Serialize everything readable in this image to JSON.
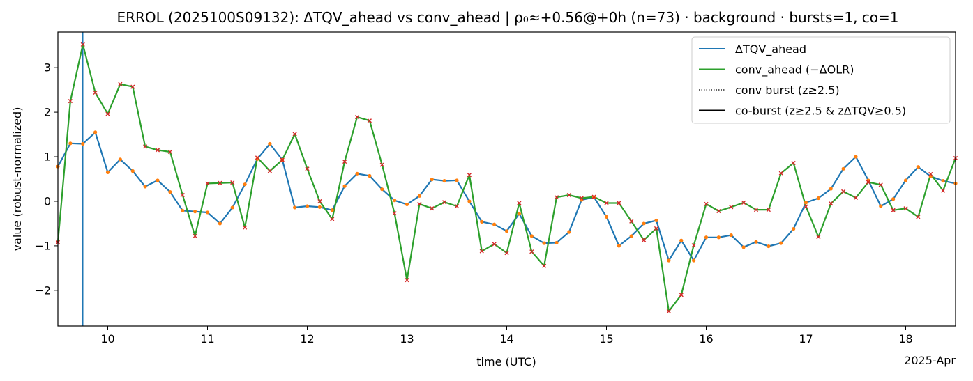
{
  "colors": {
    "tqv": "#1f77b4",
    "conv": "#2ca02c",
    "tqv_marker": "#ff7f0e",
    "conv_marker": "#d62728",
    "burst_line": "#1f77b4"
  },
  "chart_data": {
    "type": "line",
    "title": "ERROL (2025100S09132): ΔTQV_ahead vs conv_ahead | ρ₀≈+0.56@+0h (n=73) · background · bursts=1, co=1",
    "xlabel": "time (UTC)",
    "ylabel": "value (robust-normalized)",
    "x_offset_label": "2025-Apr",
    "x_start": "2025-04-09T12:00",
    "x_step_hours": 3,
    "xlim": [
      "2025-04-09T12:00",
      "2025-04-18T12:00"
    ],
    "ylim": [
      -2.8,
      3.8
    ],
    "x_ticks": [
      "10",
      "11",
      "12",
      "13",
      "14",
      "15",
      "16",
      "17",
      "18"
    ],
    "y_ticks": [
      "−2",
      "−1",
      "0",
      "1",
      "2",
      "3"
    ],
    "grid": false,
    "legend_position": "upper right",
    "legend": [
      {
        "label": "ΔTQV_ahead",
        "style": "solid",
        "color": "#1f77b4"
      },
      {
        "label": "conv_ahead (−ΔOLR)",
        "style": "solid",
        "color": "#2ca02c"
      },
      {
        "label": "conv burst (z≥2.5)",
        "style": "dotted",
        "color": "#000000"
      },
      {
        "label": "co-burst (z≥2.5 & zΔTQV≥0.5)",
        "style": "solid",
        "color": "#000000"
      }
    ],
    "burst_time": "2025-04-09T18:00",
    "series": [
      {
        "name": "ΔTQV_ahead",
        "values": [
          0.78,
          1.3,
          1.29,
          1.55,
          0.65,
          0.94,
          0.68,
          0.33,
          0.47,
          0.21,
          -0.21,
          -0.23,
          -0.25,
          -0.5,
          -0.14,
          0.38,
          0.95,
          1.29,
          0.93,
          -0.14,
          -0.11,
          -0.13,
          -0.2,
          0.34,
          0.62,
          0.57,
          0.27,
          0.02,
          -0.07,
          0.12,
          0.49,
          0.46,
          0.47,
          0.0,
          -0.46,
          -0.52,
          -0.67,
          -0.28,
          -0.78,
          -0.94,
          -0.93,
          -0.69,
          0.03,
          0.09,
          -0.35,
          -1.0,
          -0.78,
          -0.5,
          -0.43,
          -1.33,
          -0.88,
          -1.33,
          -0.81,
          -0.81,
          -0.76,
          -1.03,
          -0.91,
          -1.01,
          -0.94,
          -0.62,
          -0.03,
          0.07,
          0.28,
          0.73,
          1.0,
          0.47,
          -0.11,
          0.05,
          0.47,
          0.77,
          0.56,
          0.46,
          0.4
        ]
      },
      {
        "name": "conv_ahead (−ΔOLR)",
        "values": [
          -0.92,
          2.25,
          3.52,
          2.44,
          1.96,
          2.63,
          2.57,
          1.23,
          1.15,
          1.11,
          0.14,
          -0.78,
          0.4,
          0.41,
          0.42,
          -0.59,
          0.98,
          0.68,
          0.93,
          1.51,
          0.73,
          0.0,
          -0.4,
          0.89,
          1.89,
          1.81,
          0.82,
          -0.27,
          -1.77,
          -0.06,
          -0.16,
          -0.02,
          -0.11,
          0.59,
          -1.12,
          -0.96,
          -1.16,
          -0.04,
          -1.13,
          -1.45,
          0.09,
          0.14,
          0.07,
          0.1,
          -0.04,
          -0.04,
          -0.45,
          -0.87,
          -0.61,
          -2.47,
          -2.1,
          -0.99,
          -0.06,
          -0.22,
          -0.13,
          -0.03,
          -0.19,
          -0.19,
          0.63,
          0.86,
          -0.12,
          -0.8,
          -0.05,
          0.22,
          0.08,
          0.43,
          0.37,
          -0.2,
          -0.16,
          -0.35,
          0.61,
          0.24,
          0.97
        ]
      }
    ]
  }
}
